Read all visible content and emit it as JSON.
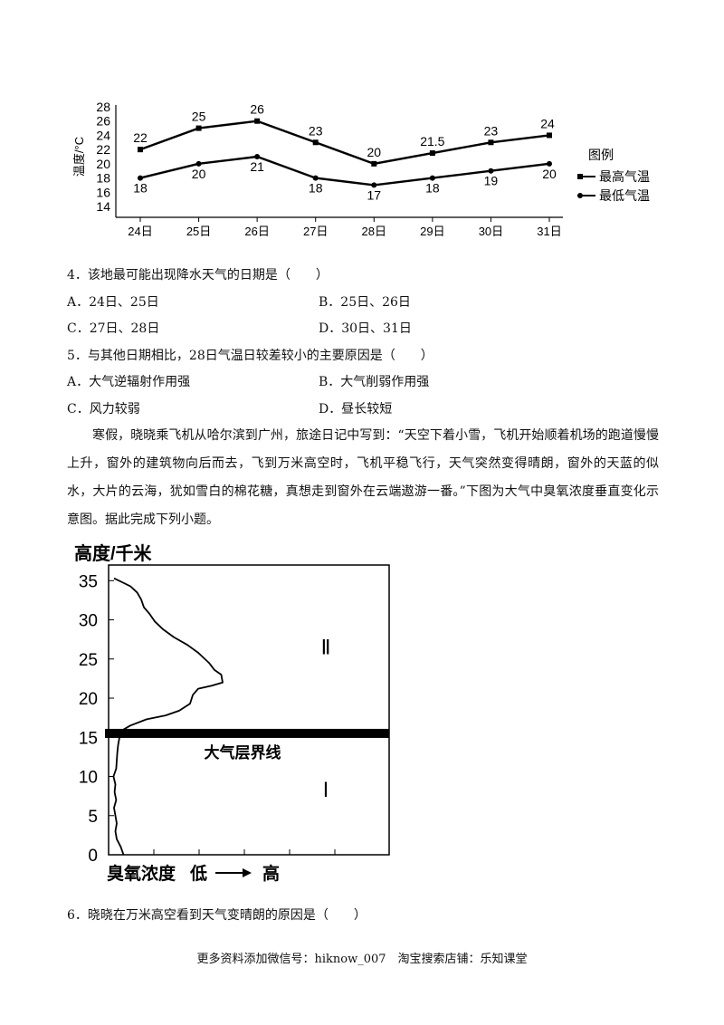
{
  "chart_data": [
    {
      "type": "line",
      "ylabel": "温度/°C",
      "ylim": [
        14,
        28
      ],
      "yticks": [
        14,
        16,
        18,
        20,
        22,
        24,
        26,
        28
      ],
      "categories": [
        "24日",
        "25日",
        "26日",
        "27日",
        "28日",
        "29日",
        "30日",
        "31日"
      ],
      "series": [
        {
          "name": "最高气温",
          "values": [
            22,
            25,
            26,
            23,
            20,
            21.5,
            23,
            24
          ],
          "labels": [
            "22",
            "25",
            "26",
            "23",
            "20",
            "21.5",
            "23",
            "24"
          ],
          "marker": "square"
        },
        {
          "name": "最低气温",
          "values": [
            18,
            20,
            21,
            18,
            17,
            18,
            19,
            20
          ],
          "labels": [
            "18",
            "20",
            "21",
            "18",
            "17",
            "18",
            "19",
            "20"
          ],
          "marker": "circle"
        }
      ],
      "legend_title": "图例",
      "legend_position": "right"
    },
    {
      "type": "line",
      "ylabel": "高度/千米",
      "xlabel": "臭氧浓度",
      "x_low": "低",
      "x_high": "高",
      "ylim": [
        0,
        37
      ],
      "yticks": [
        0,
        5,
        10,
        15,
        20,
        25,
        30,
        35
      ],
      "boundary_height": 15.5,
      "boundary_label": "大气层界线",
      "region_upper": "Ⅱ",
      "region_lower": "Ⅰ",
      "profile": [
        [
          0.55,
          0
        ],
        [
          0.45,
          1
        ],
        [
          0.3,
          2
        ],
        [
          0.25,
          3
        ],
        [
          0.3,
          4
        ],
        [
          0.25,
          5
        ],
        [
          0.2,
          6
        ],
        [
          0.28,
          7
        ],
        [
          0.22,
          8
        ],
        [
          0.25,
          9
        ],
        [
          0.18,
          10
        ],
        [
          0.28,
          11
        ],
        [
          0.3,
          12
        ],
        [
          0.32,
          13
        ],
        [
          0.35,
          14
        ],
        [
          0.4,
          15
        ],
        [
          0.45,
          15.8
        ],
        [
          0.8,
          16.5
        ],
        [
          1.4,
          17.3
        ],
        [
          2.1,
          17.8
        ],
        [
          2.6,
          18.4
        ],
        [
          3.0,
          19.3
        ],
        [
          3.1,
          20.4
        ],
        [
          3.3,
          21.2
        ],
        [
          3.8,
          21.6
        ],
        [
          4.2,
          22
        ],
        [
          4.15,
          23
        ],
        [
          3.9,
          23.6
        ],
        [
          3.7,
          24.5
        ],
        [
          3.3,
          25.8
        ],
        [
          2.9,
          26.8
        ],
        [
          2.4,
          27.8
        ],
        [
          2.0,
          28.8
        ],
        [
          1.7,
          29.8
        ],
        [
          1.5,
          30.8
        ],
        [
          1.3,
          31.6
        ],
        [
          1.2,
          32.6
        ],
        [
          1.05,
          33.5
        ],
        [
          0.8,
          34.3
        ],
        [
          0.5,
          34.8
        ],
        [
          0.2,
          35.3
        ]
      ]
    }
  ],
  "q4": {
    "stem": "4．该地最可能出现降水天气的日期是（　　）",
    "a": "A．24日、25日",
    "b": "B．25日、26日",
    "c": "C．27日、28日",
    "d": "D．30日、31日"
  },
  "q5": {
    "stem": "5．与其他日期相比，28日气温日较差较小的主要原因是（　　）",
    "a": "A．大气逆辐射作用强",
    "b": "B．大气削弱作用强",
    "c": "C．风力较弱",
    "d": "D．昼长较短"
  },
  "passage": "寒假，晓晓乘飞机从哈尔滨到广州，旅途日记中写到：“天空下着小雪，飞机开始顺着机场的跑道慢慢上升，窗外的建筑物向后而去，飞到万米高空时，飞机平稳飞行，天气突然变得晴朗，窗外的天蓝的似水，大片的云海，犹如雪白的棉花糖，真想走到窗外在云端遨游一番。”下图为大气中臭氧浓度垂直变化示意图。据此完成下列小题。",
  "q6": {
    "stem": "6．晓晓在万米高空看到天气变晴朗的原因是（　　）"
  },
  "footer": "更多资料添加微信号：hiknow_007　淘宝搜索店铺：乐知课堂"
}
